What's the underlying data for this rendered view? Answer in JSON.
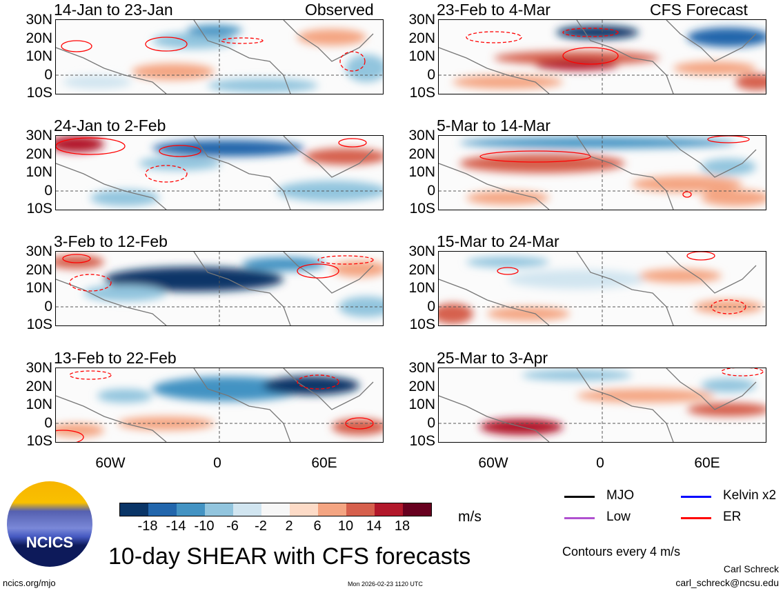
{
  "title": "10-day SHEAR with CFS forecasts",
  "chart_data": {
    "type": "heatmap",
    "title": "10-day SHEAR with CFS forecasts",
    "units": "m/s",
    "observed_label": "Observed",
    "forecast_label": "CFS Forecast",
    "lat_ticks": [
      "30N",
      "20N",
      "10N",
      "0",
      "10S"
    ],
    "lon_ticks": [
      "60W",
      "0",
      "60E"
    ],
    "panels": [
      {
        "period": "14-Jan to 23-Jan",
        "type": "Observed"
      },
      {
        "period": "24-Jan to 2-Feb",
        "type": "Observed"
      },
      {
        "period": "3-Feb to 12-Feb",
        "type": "Observed"
      },
      {
        "period": "13-Feb to 22-Feb",
        "type": "Observed"
      },
      {
        "period": "23-Feb to 4-Mar",
        "type": "CFS Forecast"
      },
      {
        "period": "5-Mar to 14-Mar",
        "type": "CFS Forecast"
      },
      {
        "period": "15-Mar to 24-Mar",
        "type": "CFS Forecast"
      },
      {
        "period": "25-Mar to 3-Apr",
        "type": "CFS Forecast"
      }
    ],
    "colorbar": {
      "ticks": [
        "-18",
        "-14",
        "-10",
        "-6",
        "-2",
        "2",
        "6",
        "10",
        "14",
        "18"
      ],
      "colors": [
        "#0a3567",
        "#2266ac",
        "#4393c3",
        "#92c5de",
        "#d1e5f0",
        "#f7f7f7",
        "#fddbc7",
        "#f4a582",
        "#d6604d",
        "#b2182b",
        "#67001f"
      ]
    },
    "legend": [
      {
        "label": "MJO",
        "color": "#000000"
      },
      {
        "label": "Kelvin x2",
        "color": "#0000ff"
      },
      {
        "label": "Low",
        "color": "#b050d0"
      },
      {
        "label": "ER",
        "color": "#ff0000"
      }
    ],
    "contour_note": "Contours every 4 m/s"
  },
  "footer": {
    "logo_text": "NCICS",
    "url": "ncics.org/mjo",
    "timestamp": "Mon 2026-02-23 1120 UTC",
    "author": "Carl Schreck",
    "email": "carl_schreck@ncsu.edu"
  }
}
